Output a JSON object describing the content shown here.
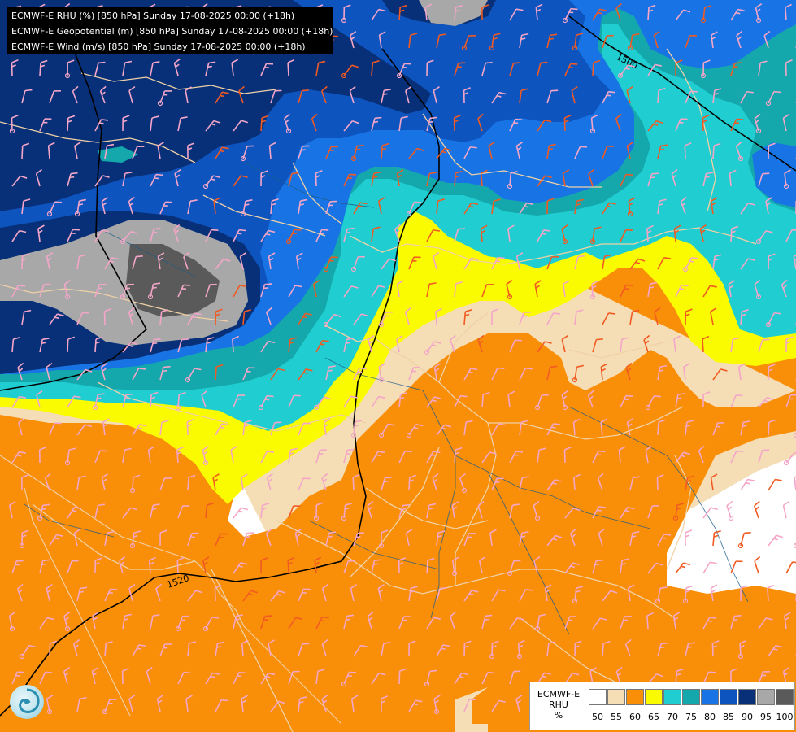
{
  "header": {
    "line1": "ECMWF-E RHU (%) [850 hPa] Sunday 17-08-2025 00:00 (+18h)",
    "line2": "ECMWF-E Geopotential (m) [850 hPa] Sunday 17-08-2025 00:00 (+18h)",
    "line3": "ECMWF-E Wind (m/s) [850 hPa] Sunday 17-08-2025 00:00 (+18h)"
  },
  "contours": {
    "label_1500": "1500",
    "label_1520": "1520"
  },
  "legend": {
    "title_line1": "ECMWF-E",
    "title_line2": "RHU",
    "title_line3": "%",
    "swatches": [
      {
        "color": "#ffffff"
      },
      {
        "color": "#f5ddb5"
      },
      {
        "color": "#f98e08"
      },
      {
        "color": "#fafa00"
      },
      {
        "color": "#20cdd0"
      },
      {
        "color": "#14a8ad"
      },
      {
        "color": "#1874e4"
      },
      {
        "color": "#0e54bf"
      },
      {
        "color": "#083079"
      },
      {
        "color": "#a8a8a8"
      },
      {
        "color": "#5a5a5a"
      }
    ],
    "ticks": [
      "50",
      "55",
      "60",
      "65",
      "70",
      "75",
      "80",
      "85",
      "90",
      "95",
      "100"
    ]
  },
  "colors": {
    "dry_barb": "#f4a6c8",
    "wet_barb": "#f15a22",
    "border": "#f0d1a6",
    "river": "#1c5c8a",
    "geopotential_line": "#000000"
  },
  "logo": {
    "icon": "ecmwf-swirl-icon"
  }
}
